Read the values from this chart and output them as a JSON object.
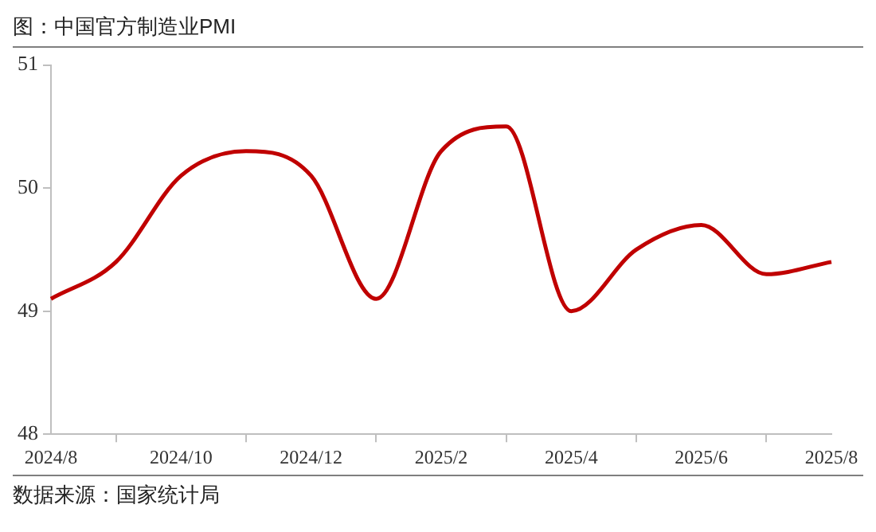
{
  "chart_data": {
    "type": "line",
    "title": "图：中国官方制造业PMI",
    "categories": [
      "2024/8",
      null,
      "2024/10",
      null,
      "2024/12",
      null,
      "2025/2",
      null,
      "2025/4",
      null,
      "2025/6",
      null,
      "2025/8"
    ],
    "series": [
      {
        "color": "#c00000",
        "values": [
          49.1,
          49.4,
          50.1,
          50.3,
          50.1,
          49.1,
          50.3,
          50.5,
          49.0,
          49.5,
          49.7,
          49.3,
          49.4
        ]
      }
    ],
    "ylim": [
      48,
      51
    ],
    "yticks": [
      48,
      49,
      50,
      51
    ],
    "grid": false,
    "legend": false,
    "marker": "none",
    "line_style": "solid",
    "annotations": [
      "数据来源：国家统计局"
    ]
  }
}
